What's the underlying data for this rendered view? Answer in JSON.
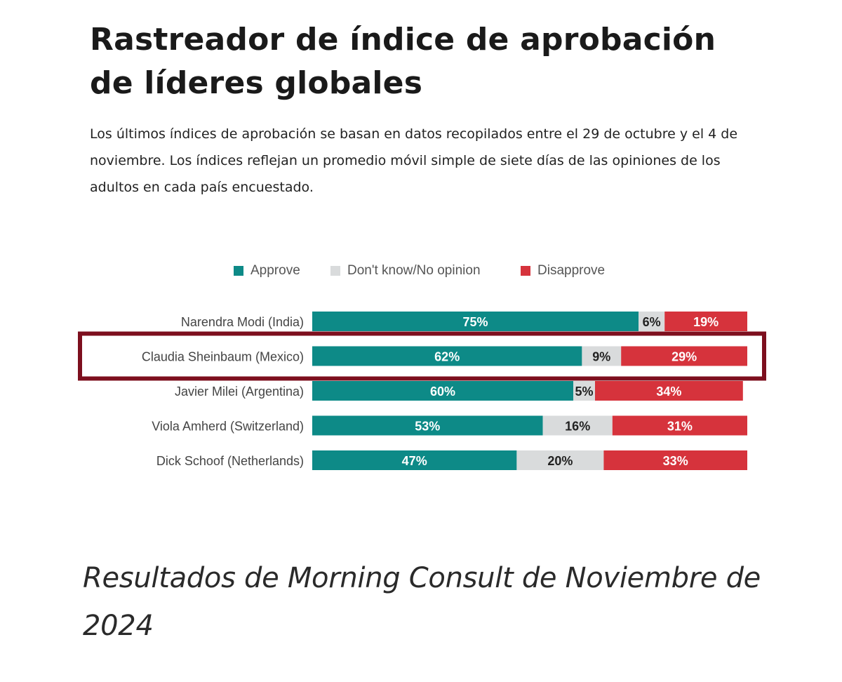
{
  "title": "Rastreador de índice de aprobación de líderes globales",
  "subtitle": "Los últimos índices de aprobación se basan en datos recopilados entre el 29 de octubre y el 4 de noviembre. Los índices reflejan un promedio móvil simple de siete días de las opiniones de los adultos en cada país encuestado.",
  "caption": "Resultados de Morning Consult de Noviembre de 2024",
  "colors": {
    "approve": "#0d8a87",
    "dont_know": "#d9dbdc",
    "disapprove": "#d6333c",
    "highlight_box": "#7d0f1e"
  },
  "highlighted_category": "Claudia Sheinbaum (Mexico)",
  "chart_data": {
    "type": "bar",
    "orientation": "horizontal",
    "stacked": true,
    "xlim": [
      0,
      100
    ],
    "legend": "top-center",
    "categories": [
      "Narendra Modi (India)",
      "Claudia Sheinbaum (Mexico)",
      "Javier Milei (Argentina)",
      "Viola Amherd (Switzerland)",
      "Dick Schoof (Netherlands)"
    ],
    "series": [
      {
        "name": "Approve",
        "color": "#0d8a87",
        "values": [
          75,
          62,
          60,
          53,
          47
        ],
        "labels": [
          "75%",
          "62%",
          "60%",
          "53%",
          "47%"
        ]
      },
      {
        "name": "Don't know/No opinion",
        "color": "#d9dbdc",
        "values": [
          6,
          9,
          5,
          16,
          20
        ],
        "labels": [
          "6%",
          "9%",
          "5%",
          "16%",
          "20%"
        ]
      },
      {
        "name": "Disapprove",
        "color": "#d6333c",
        "values": [
          19,
          29,
          34,
          31,
          33
        ],
        "labels": [
          "19%",
          "29%",
          "34%",
          "31%",
          "33%"
        ]
      }
    ]
  }
}
